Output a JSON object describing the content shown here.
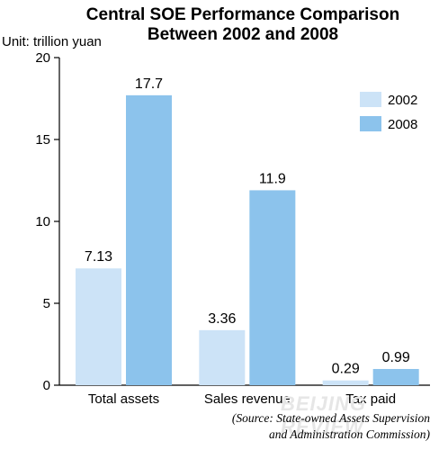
{
  "title_lines": [
    "Central SOE Performance Comparison",
    "Between 2002 and 2008"
  ],
  "unit_label": "Unit: trillion yuan",
  "source_lines": [
    "(Source: State-owned Assets Supervision",
    "and Administration Commission)"
  ],
  "watermark": "BEIJING REVIEW",
  "chart_data": {
    "type": "bar",
    "title": "Central SOE Performance Comparison Between 2002 and 2008",
    "ylabel": "Unit: trillion yuan",
    "xlabel": "",
    "categories": [
      "Total assets",
      "Sales revenue",
      "Tax paid"
    ],
    "series": [
      {
        "name": "2002",
        "values": [
          7.13,
          3.36,
          0.29
        ],
        "labels": [
          "7.13",
          "3.36",
          "0.29"
        ],
        "color": "#cce3f7"
      },
      {
        "name": "2008",
        "values": [
          17.7,
          11.9,
          0.99
        ],
        "labels": [
          "17.7",
          "11.9",
          "0.99"
        ],
        "color": "#8cc3ec"
      }
    ],
    "ylim": [
      0,
      20
    ],
    "yticks": [
      0,
      5,
      10,
      15,
      20
    ],
    "legend_position": "top-right",
    "grid": false
  }
}
